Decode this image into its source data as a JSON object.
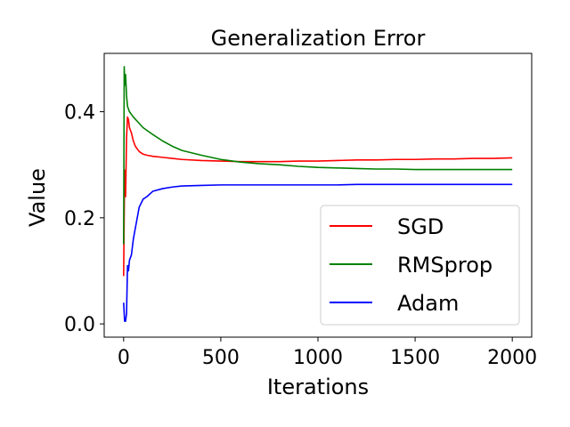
{
  "chart_data": {
    "type": "line",
    "title": "Generalization Error",
    "xlabel": "Iterations",
    "ylabel": "Value",
    "xlim": [
      -100,
      2100
    ],
    "ylim": [
      -0.025,
      0.51
    ],
    "xticks": [
      0,
      500,
      1000,
      1500,
      2000
    ],
    "xtick_labels": [
      "0",
      "500",
      "1000",
      "1500",
      "2000"
    ],
    "yticks": [
      0.0,
      0.2,
      0.4
    ],
    "ytick_labels": [
      "0.0",
      "0.2",
      "0.4"
    ],
    "grid": false,
    "legend_position": "lower-right",
    "series": [
      {
        "name": "SGD",
        "color": "#ff0000",
        "x": [
          0,
          5,
          10,
          15,
          20,
          25,
          30,
          40,
          50,
          60,
          70,
          80,
          100,
          120,
          150,
          200,
          250,
          300,
          400,
          500,
          600,
          700,
          800,
          900,
          1000,
          1100,
          1200,
          1300,
          1400,
          1500,
          1600,
          1700,
          1800,
          1900,
          2000
        ],
        "y": [
          0.09,
          0.29,
          0.24,
          0.35,
          0.39,
          0.385,
          0.37,
          0.36,
          0.345,
          0.335,
          0.33,
          0.325,
          0.32,
          0.318,
          0.316,
          0.314,
          0.312,
          0.31,
          0.308,
          0.307,
          0.306,
          0.306,
          0.306,
          0.307,
          0.307,
          0.308,
          0.309,
          0.309,
          0.31,
          0.31,
          0.311,
          0.311,
          0.312,
          0.312,
          0.313
        ]
      },
      {
        "name": "RMSprop",
        "color": "#008000",
        "x": [
          0,
          3,
          6,
          10,
          15,
          20,
          30,
          40,
          50,
          75,
          100,
          150,
          200,
          250,
          300,
          400,
          500,
          600,
          700,
          800,
          900,
          1000,
          1100,
          1200,
          1300,
          1400,
          1500,
          1600,
          1700,
          1800,
          1900,
          2000
        ],
        "y": [
          0.15,
          0.485,
          0.45,
          0.47,
          0.43,
          0.41,
          0.4,
          0.395,
          0.39,
          0.38,
          0.37,
          0.357,
          0.345,
          0.335,
          0.327,
          0.318,
          0.31,
          0.305,
          0.302,
          0.3,
          0.297,
          0.295,
          0.294,
          0.293,
          0.292,
          0.292,
          0.291,
          0.291,
          0.291,
          0.291,
          0.291,
          0.291
        ]
      },
      {
        "name": "Adam",
        "color": "#0000ff",
        "x": [
          0,
          5,
          10,
          15,
          20,
          25,
          30,
          40,
          50,
          60,
          70,
          80,
          100,
          120,
          150,
          200,
          250,
          300,
          400,
          500,
          600,
          700,
          800,
          900,
          1000,
          1100,
          1200,
          1300,
          1400,
          1500,
          1600,
          1700,
          1800,
          1900,
          2000
        ],
        "y": [
          0.04,
          0.005,
          0.005,
          0.02,
          0.11,
          0.1,
          0.12,
          0.13,
          0.16,
          0.18,
          0.2,
          0.22,
          0.235,
          0.24,
          0.25,
          0.255,
          0.258,
          0.26,
          0.261,
          0.262,
          0.262,
          0.262,
          0.262,
          0.262,
          0.262,
          0.262,
          0.263,
          0.263,
          0.263,
          0.263,
          0.263,
          0.263,
          0.263,
          0.263,
          0.263
        ]
      }
    ]
  }
}
